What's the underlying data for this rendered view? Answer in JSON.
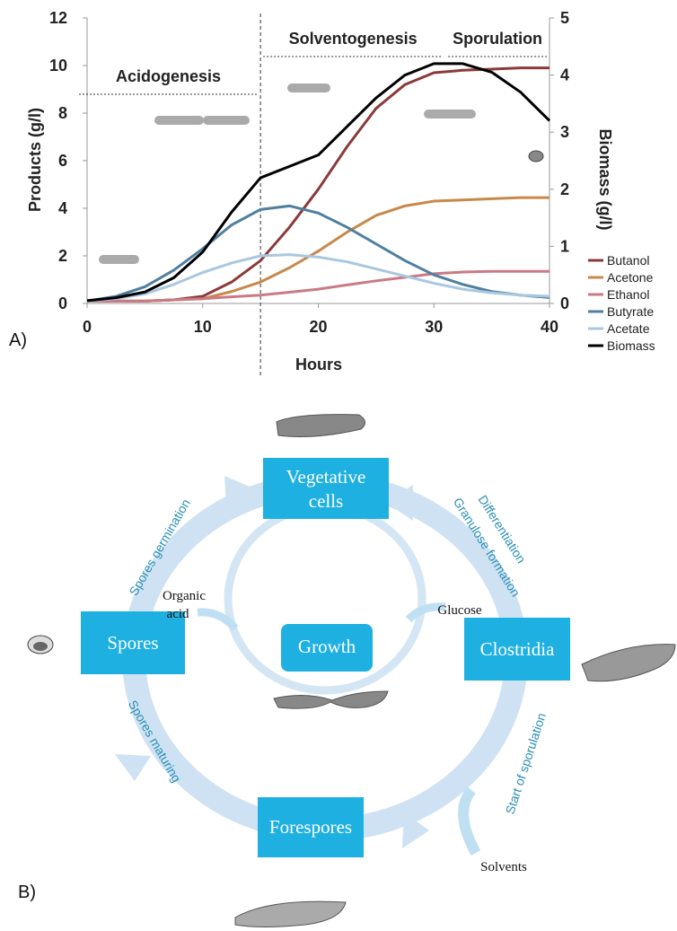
{
  "chart_data": {
    "type": "line",
    "panel_label": "A)",
    "xlabel": "Hours",
    "ylabel": "Products (g/l)",
    "y2label": "Biomass (g/l)",
    "x": [
      0,
      2.5,
      5,
      7.5,
      10,
      12.5,
      15,
      17.5,
      20,
      22.5,
      25,
      27.5,
      30,
      32.5,
      35,
      37.5,
      40
    ],
    "xlim": [
      0,
      40
    ],
    "xticks": [
      0,
      10,
      20,
      30,
      40
    ],
    "ylim": [
      0,
      12
    ],
    "yticks": [
      0,
      2,
      4,
      6,
      8,
      10,
      12
    ],
    "y2lim": [
      0,
      5
    ],
    "y2ticks": [
      0,
      1,
      2,
      3,
      4,
      5
    ],
    "phase_boundary": 15,
    "phases": [
      {
        "label": "Acidogenesis",
        "from": 0,
        "to": 15
      },
      {
        "label": "Solventogenesis",
        "from": 15,
        "to": 31
      },
      {
        "label": "Sporulation",
        "from": 31,
        "to": 40
      }
    ],
    "series": [
      {
        "name": "Butanol",
        "color": "#8b3a3a",
        "values": [
          0.1,
          0.1,
          0.1,
          0.15,
          0.3,
          0.9,
          1.8,
          3.2,
          4.8,
          6.6,
          8.2,
          9.2,
          9.7,
          9.8,
          9.85,
          9.9,
          9.9
        ]
      },
      {
        "name": "Acetone",
        "color": "#c8884a",
        "values": [
          0.1,
          0.1,
          0.1,
          0.15,
          0.2,
          0.5,
          0.9,
          1.5,
          2.2,
          3.0,
          3.7,
          4.1,
          4.3,
          4.35,
          4.4,
          4.45,
          4.45
        ]
      },
      {
        "name": "Ethanol",
        "color": "#c87a85",
        "values": [
          0.1,
          0.1,
          0.1,
          0.15,
          0.2,
          0.28,
          0.35,
          0.47,
          0.6,
          0.78,
          0.95,
          1.1,
          1.25,
          1.32,
          1.35,
          1.35,
          1.35
        ]
      },
      {
        "name": "Butyrate",
        "color": "#4f7fa0",
        "values": [
          0.1,
          0.3,
          0.7,
          1.4,
          2.3,
          3.3,
          3.95,
          4.1,
          3.8,
          3.2,
          2.5,
          1.8,
          1.2,
          0.8,
          0.5,
          0.35,
          0.25
        ]
      },
      {
        "name": "Acetate",
        "color": "#a9c8e0",
        "values": [
          0.1,
          0.2,
          0.4,
          0.8,
          1.3,
          1.7,
          2.0,
          2.05,
          1.95,
          1.75,
          1.45,
          1.15,
          0.85,
          0.6,
          0.45,
          0.35,
          0.3
        ]
      },
      {
        "name": "Biomass",
        "color": "#000000",
        "axis": "y2",
        "values": [
          0.05,
          0.1,
          0.2,
          0.45,
          0.9,
          1.6,
          2.2,
          2.4,
          2.6,
          3.1,
          3.6,
          4.0,
          4.2,
          4.2,
          4.05,
          3.7,
          3.2
        ]
      }
    ]
  },
  "diagram": {
    "panel_label": "B)",
    "nodes": {
      "vegetative": [
        "Vegetative",
        "cells"
      ],
      "spores": "Spores",
      "clostridia": "Clostridia",
      "forespores": "Forespores",
      "growth": "Growth"
    },
    "labels": {
      "organic_acid": [
        "Organic",
        "acid"
      ],
      "glucose": "Glucose",
      "solvents": "Solvents",
      "spores_germination": "Spores germination",
      "differentiation": "Differentiation",
      "granulose": "Granulose formation",
      "start_sporulation": "Start of sporulation",
      "spores_maturing": "Spores maturing"
    }
  }
}
